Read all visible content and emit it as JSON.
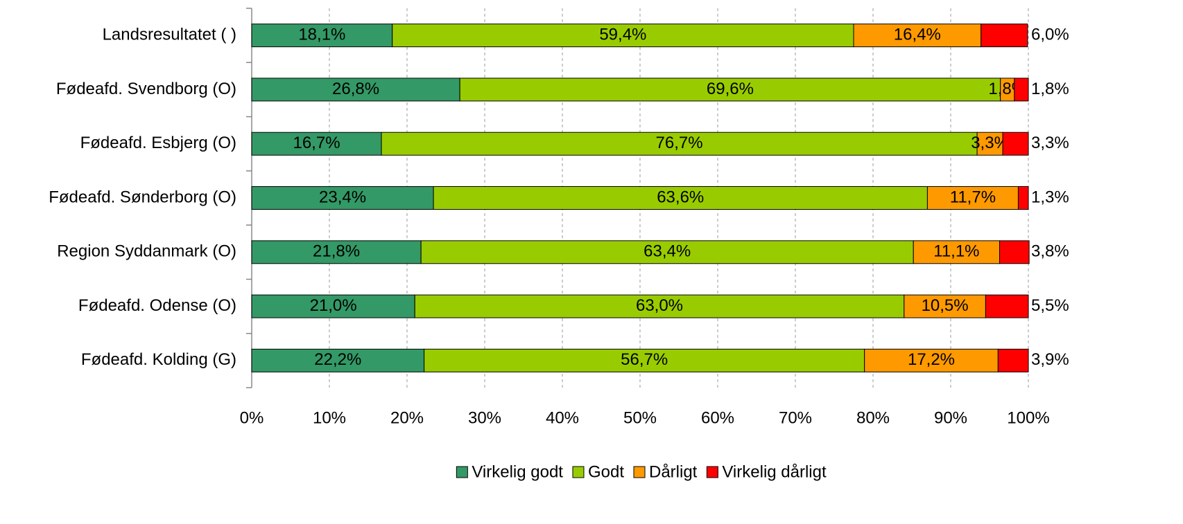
{
  "chart_data": {
    "type": "stacked_bar_horizontal",
    "categories": [
      "Landsresultatet ( )",
      "Fødeafd. Svendborg (O)",
      "Fødeafd. Esbjerg (O)",
      "Fødeafd. Sønderborg (O)",
      "Region Syddanmark (O)",
      "Fødeafd. Odense (O)",
      "Fødeafd. Kolding (G)"
    ],
    "series": [
      {
        "name": "Virkelig godt",
        "color": "#339966",
        "values": [
          18.1,
          26.8,
          16.7,
          23.4,
          21.8,
          21.0,
          22.2
        ],
        "value_labels": [
          "18,1%",
          "26,8%",
          "16,7%",
          "23,4%",
          "21,8%",
          "21,0%",
          "22,2%"
        ]
      },
      {
        "name": "Godt",
        "color": "#99cc00",
        "values": [
          59.4,
          69.6,
          76.7,
          63.6,
          63.4,
          63.0,
          56.7
        ],
        "value_labels": [
          "59,4%",
          "69,6%",
          "76,7%",
          "63,6%",
          "63,4%",
          "63,0%",
          "56,7%"
        ]
      },
      {
        "name": "Dårligt",
        "color": "#ff9900",
        "values": [
          16.4,
          1.8,
          3.3,
          11.7,
          11.1,
          10.5,
          17.2
        ],
        "value_labels": [
          "16,4%",
          "1,8%",
          "3,3%",
          "11,7%",
          "11,1%",
          "10,5%",
          "17,2%"
        ]
      },
      {
        "name": "Virkelig dårligt",
        "color": "#ff0000",
        "values": [
          6.0,
          1.8,
          3.3,
          1.3,
          3.8,
          5.5,
          3.9
        ],
        "value_labels": [
          "6,0%",
          "1,8%",
          "3,3%",
          "1,3%",
          "3,8%",
          "5,5%",
          "3,9%"
        ]
      }
    ],
    "xlim": [
      0,
      100
    ],
    "xticks": [
      {
        "value": 0,
        "label": "0%"
      },
      {
        "value": 10,
        "label": "10%"
      },
      {
        "value": 20,
        "label": "20%"
      },
      {
        "value": 30,
        "label": "30%"
      },
      {
        "value": 40,
        "label": "40%"
      },
      {
        "value": 50,
        "label": "50%"
      },
      {
        "value": 60,
        "label": "60%"
      },
      {
        "value": 70,
        "label": "70%"
      },
      {
        "value": 80,
        "label": "80%"
      },
      {
        "value": 90,
        "label": "90%"
      },
      {
        "value": 100,
        "label": "100%"
      }
    ],
    "grid": true,
    "legend": "bottom"
  }
}
